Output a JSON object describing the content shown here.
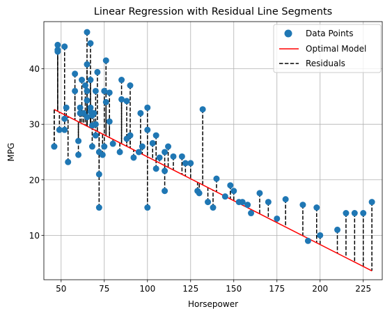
{
  "chart_data": {
    "type": "scatter",
    "title": "Linear Regression with Residual Line Segments",
    "xlabel": "Horsepower",
    "ylabel": "MPG",
    "xlim": [
      40,
      236
    ],
    "ylim": [
      2,
      48.5
    ],
    "xticks": [
      50,
      75,
      100,
      125,
      150,
      175,
      200,
      225
    ],
    "yticks": [
      10,
      20,
      30,
      40
    ],
    "grid": true,
    "legend_position": "top-right",
    "colors": {
      "points": "#1f77b4",
      "model": "#ff0000",
      "residuals": "#000000"
    },
    "legend": [
      {
        "label": "Data Points",
        "kind": "marker"
      },
      {
        "label": "Optimal Model",
        "kind": "line"
      },
      {
        "label": "Residuals",
        "kind": "dashed"
      }
    ],
    "model": {
      "slope": -0.158,
      "intercept": 39.94
    },
    "points": [
      [
        46,
        26
      ],
      [
        46,
        26
      ],
      [
        48,
        43.4
      ],
      [
        48,
        44.3
      ],
      [
        48,
        43.1
      ],
      [
        49,
        29
      ],
      [
        52,
        29
      ],
      [
        52,
        44
      ],
      [
        52,
        31
      ],
      [
        53,
        33
      ],
      [
        54,
        23.2
      ],
      [
        58,
        39.1
      ],
      [
        58,
        36
      ],
      [
        60,
        24.5
      ],
      [
        60,
        27
      ],
      [
        61,
        32
      ],
      [
        61,
        33
      ],
      [
        62,
        38
      ],
      [
        63,
        32
      ],
      [
        64,
        37
      ],
      [
        65,
        46.6
      ],
      [
        65,
        40.8
      ],
      [
        65,
        36
      ],
      [
        65,
        34.3
      ],
      [
        65,
        31.3
      ],
      [
        67,
        44.6
      ],
      [
        67,
        38
      ],
      [
        67,
        33
      ],
      [
        67,
        32.3
      ],
      [
        68,
        29.8
      ],
      [
        68,
        31.6
      ],
      [
        68,
        26
      ],
      [
        69,
        32
      ],
      [
        70,
        36
      ],
      [
        70,
        30
      ],
      [
        70,
        28
      ],
      [
        71,
        39.4
      ],
      [
        72,
        15
      ],
      [
        72,
        21
      ],
      [
        72,
        25
      ],
      [
        74,
        24.5
      ],
      [
        75,
        26
      ],
      [
        75,
        36
      ],
      [
        76,
        41.5
      ],
      [
        76,
        34
      ],
      [
        78,
        35.7
      ],
      [
        78,
        30.5
      ],
      [
        80,
        26.5
      ],
      [
        84,
        25
      ],
      [
        85,
        38
      ],
      [
        85,
        34.5
      ],
      [
        88,
        34.2
      ],
      [
        88,
        27.4
      ],
      [
        90,
        37
      ],
      [
        90,
        28
      ],
      [
        92,
        24
      ],
      [
        95,
        25
      ],
      [
        96,
        32
      ],
      [
        97,
        26
      ],
      [
        100,
        33
      ],
      [
        100,
        29
      ],
      [
        100,
        15
      ],
      [
        103,
        26.6
      ],
      [
        105,
        28
      ],
      [
        105,
        22
      ],
      [
        107,
        24
      ],
      [
        110,
        25
      ],
      [
        110,
        21.6
      ],
      [
        110,
        18
      ],
      [
        112,
        26
      ],
      [
        115,
        24.2
      ],
      [
        120,
        24.2
      ],
      [
        122,
        23
      ],
      [
        125,
        23
      ],
      [
        129,
        18
      ],
      [
        130,
        17.6
      ],
      [
        132,
        32.7
      ],
      [
        135,
        16
      ],
      [
        138,
        15
      ],
      [
        140,
        20.2
      ],
      [
        145,
        17
      ],
      [
        148,
        19
      ],
      [
        150,
        18
      ],
      [
        153,
        16
      ],
      [
        155,
        16
      ],
      [
        158,
        15.5
      ],
      [
        160,
        14
      ],
      [
        165,
        17.6
      ],
      [
        170,
        16
      ],
      [
        175,
        13
      ],
      [
        180,
        16.5
      ],
      [
        190,
        15.5
      ],
      [
        193,
        9
      ],
      [
        198,
        15
      ],
      [
        200,
        10
      ],
      [
        210,
        11
      ],
      [
        215,
        14
      ],
      [
        220,
        14
      ],
      [
        225,
        14
      ],
      [
        230,
        16
      ]
    ]
  }
}
